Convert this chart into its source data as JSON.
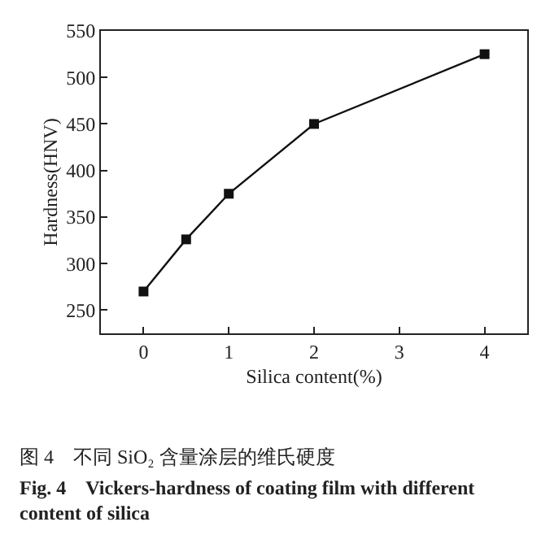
{
  "chart_data": {
    "type": "line",
    "xlabel": "Silica content(%)",
    "ylabel": "Hardness(HNV)",
    "x": [
      0,
      0.5,
      1,
      2,
      4
    ],
    "series": [
      {
        "color": "#111111",
        "values": [
          270,
          326,
          375,
          450,
          525
        ]
      }
    ],
    "xlim": [
      -0.5,
      4.5
    ],
    "xticks": [
      0,
      1,
      2,
      3,
      4
    ],
    "ylim": [
      225,
      550
    ],
    "yticks": [
      250,
      300,
      350,
      400,
      450,
      500,
      550
    ],
    "marker": "square",
    "line_style": "solid",
    "annotations": [
      "图 4　不同 SiO₂ 含量涂层的维氏硬度",
      "Fig. 4　Vickers-hardness of coating film with different\ncontent of silica"
    ]
  }
}
